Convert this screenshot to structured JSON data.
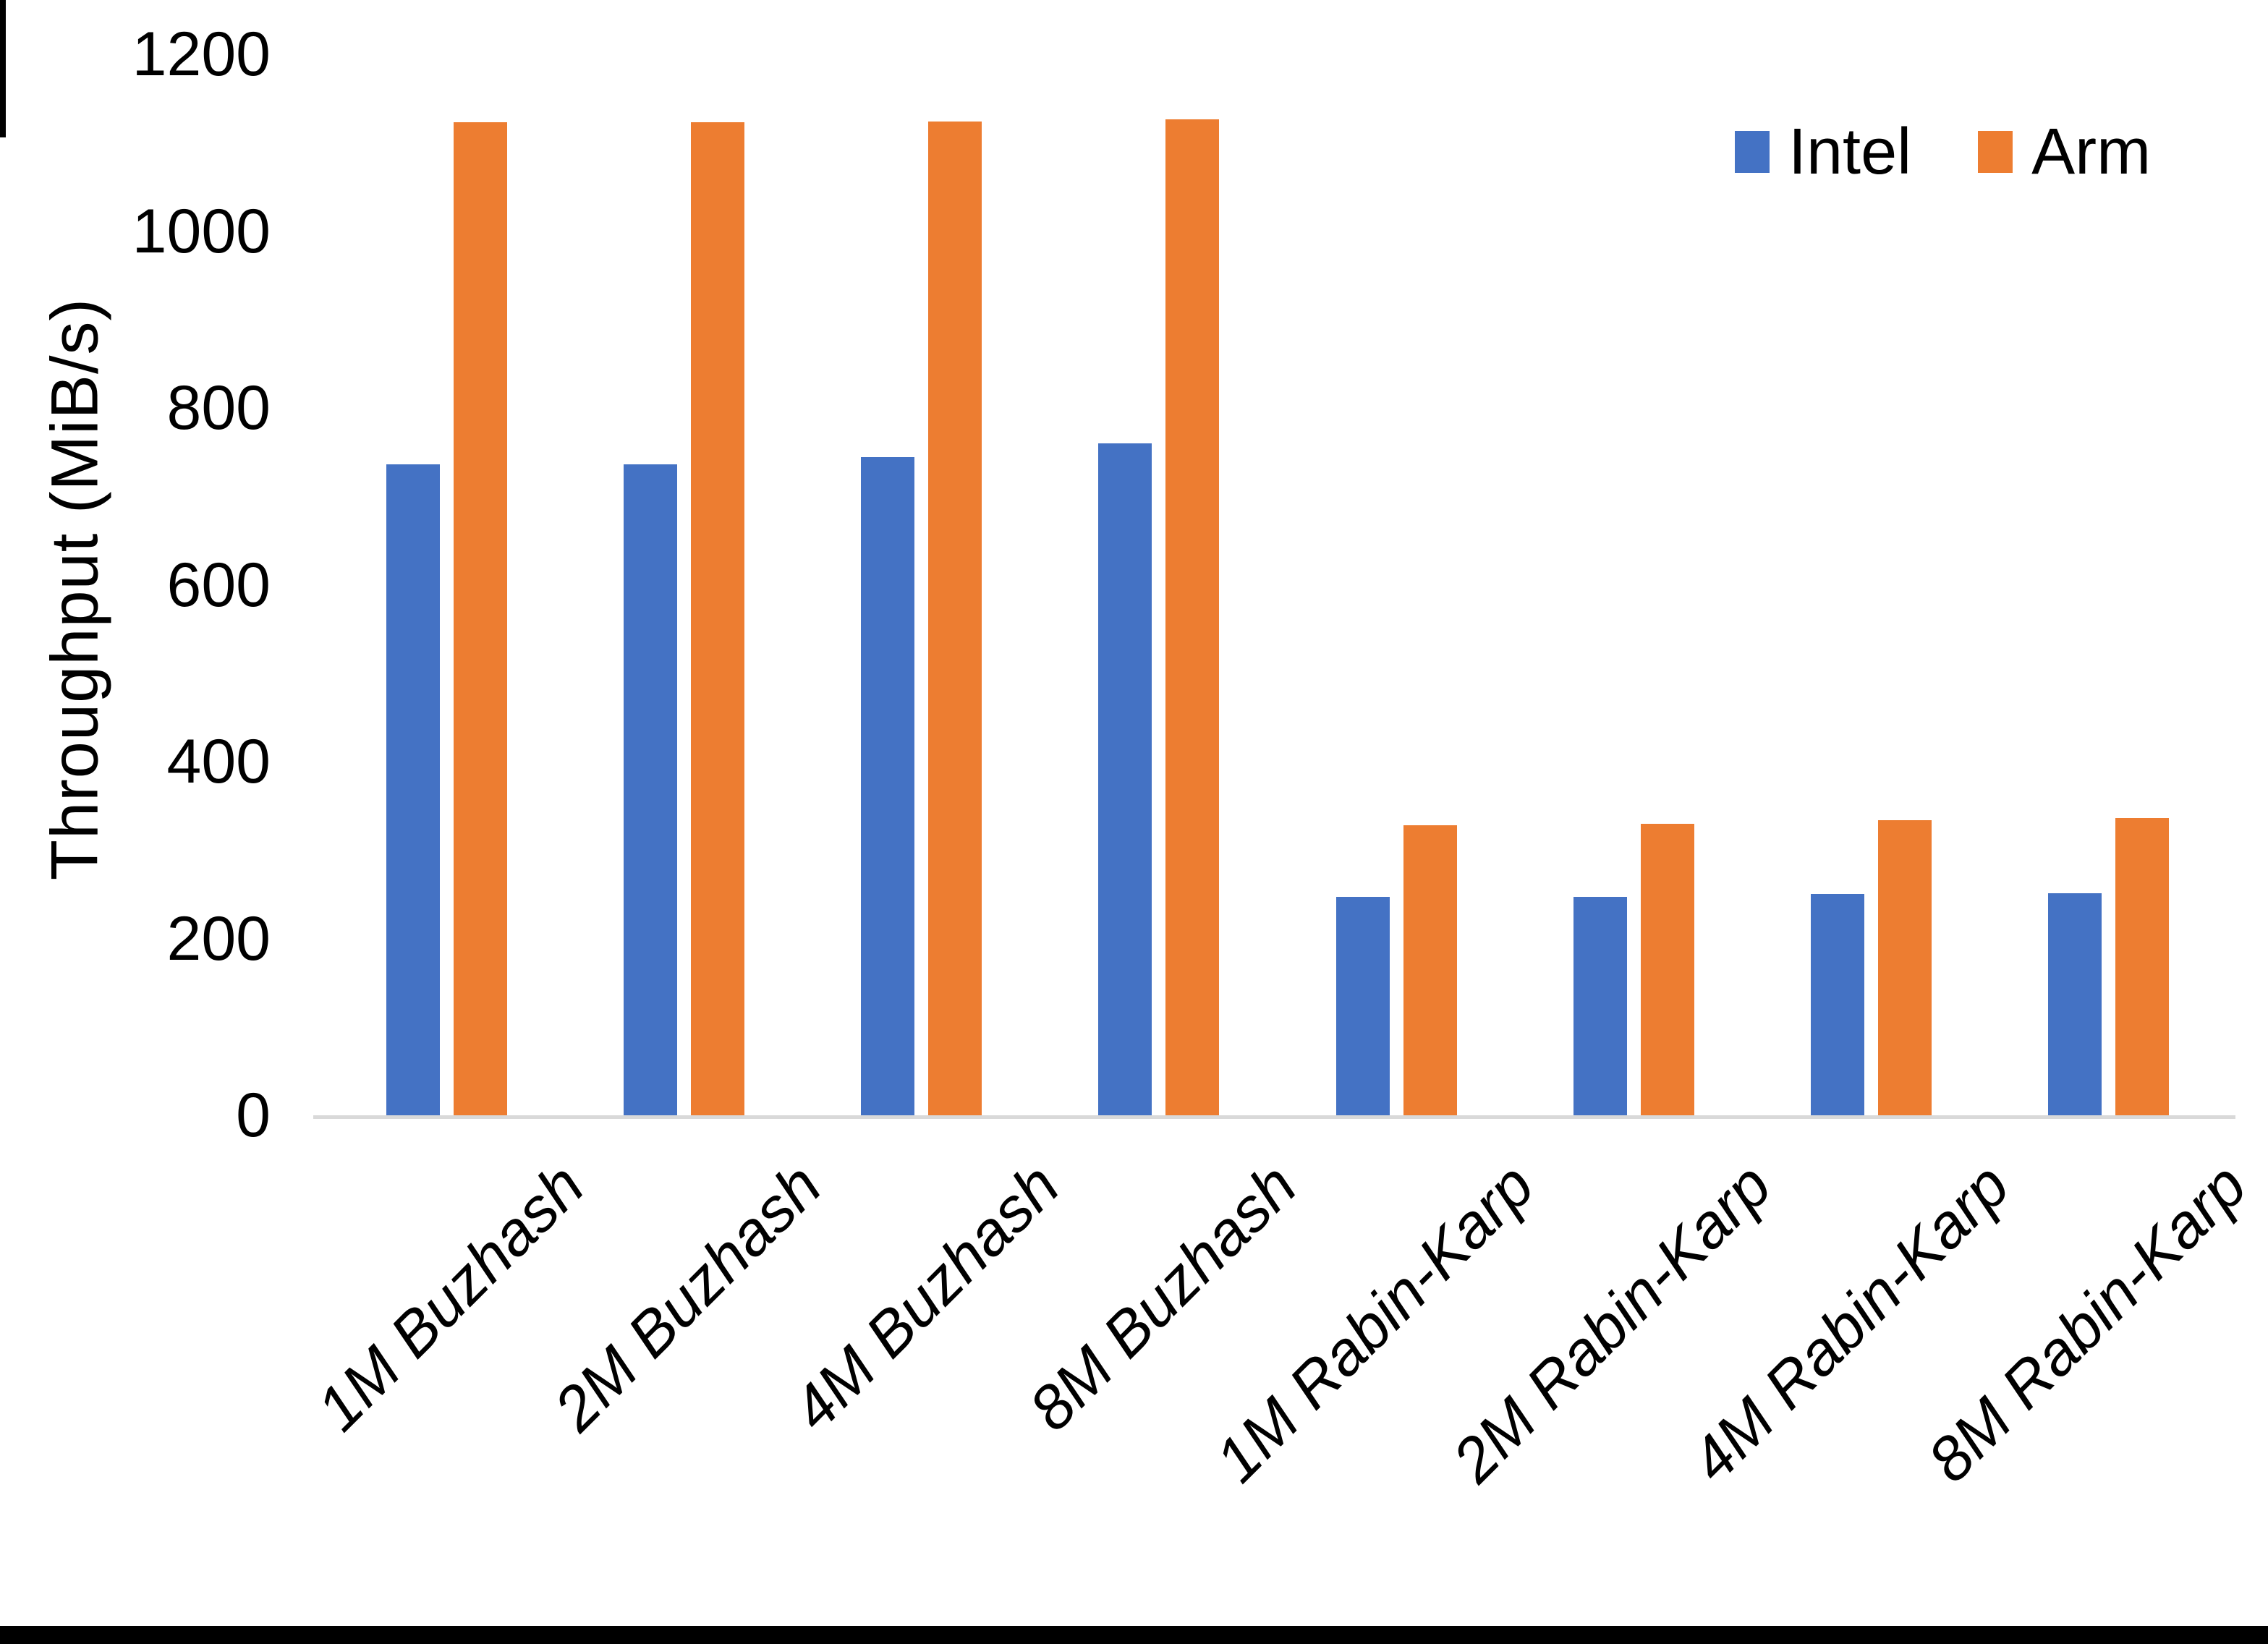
{
  "chart_data": {
    "type": "bar",
    "title": "",
    "categories": [
      "1M Buzhash",
      "2M Buzhash",
      "4M Buzhash",
      "8M Buzhash",
      "1M Rabin-Karp",
      "2M Rabin-Karp",
      "4M Rabin-Karp",
      "8M Rabin-Karp"
    ],
    "series": [
      {
        "name": "Intel",
        "color": "#4472C4",
        "values": [
          736,
          736,
          744,
          760,
          247,
          247,
          250,
          251
        ]
      },
      {
        "name": "Arm",
        "color": "#ED7D31",
        "values": [
          1123,
          1123,
          1124,
          1126,
          328,
          330,
          334,
          336
        ]
      }
    ],
    "xlabel": "",
    "ylabel": "Throughput (MiB/s)",
    "ylim": [
      0,
      1200
    ],
    "yticks": [
      0,
      200,
      400,
      600,
      800,
      1000,
      1200
    ],
    "grid": false,
    "legend_position": "top-right",
    "axis_line_color": "#d9d9d9"
  }
}
